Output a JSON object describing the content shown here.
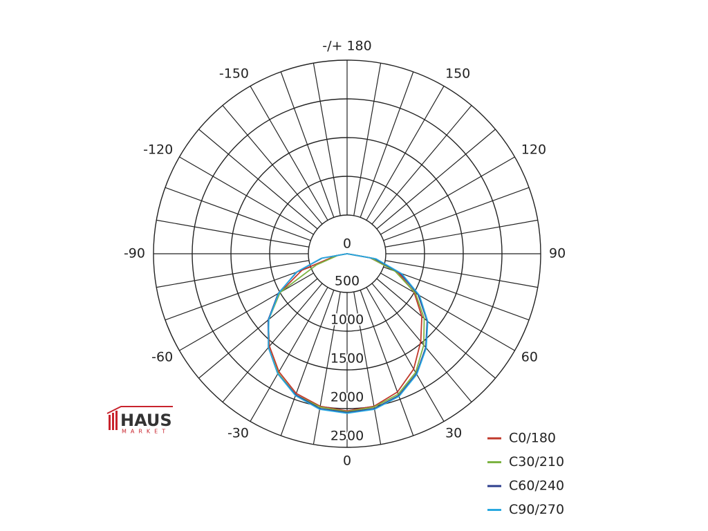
{
  "logo": {
    "name": "HAUS",
    "subtitle": "MARKET"
  },
  "chart_data": {
    "type": "polar",
    "x": [
      -90,
      -80,
      -70,
      -60,
      -50,
      -40,
      -30,
      -20,
      -10,
      0,
      10,
      20,
      30,
      40,
      50,
      60,
      70,
      80,
      90
    ],
    "series": [
      {
        "name": "C0/180",
        "color": "#c0392b",
        "values": [
          0,
          150,
          620,
          1000,
          1330,
          1560,
          1760,
          1920,
          2000,
          2030,
          2000,
          1900,
          1720,
          1480,
          1260,
          1000,
          700,
          300,
          0
        ]
      },
      {
        "name": "C30/210",
        "color": "#7cb342",
        "values": [
          0,
          120,
          420,
          1000,
          1320,
          1580,
          1780,
          1940,
          2010,
          2040,
          2010,
          1930,
          1770,
          1540,
          1300,
          1020,
          660,
          310,
          0
        ]
      },
      {
        "name": "C60/240",
        "color": "#2c3e8c",
        "values": [
          0,
          330,
          690,
          1030,
          1330,
          1580,
          1790,
          1940,
          2030,
          2050,
          2030,
          1950,
          1790,
          1580,
          1350,
          1060,
          730,
          360,
          0
        ]
      },
      {
        "name": "C90/270",
        "color": "#29a8e0",
        "values": [
          0,
          340,
          700,
          1020,
          1320,
          1580,
          1790,
          1950,
          2040,
          2060,
          2040,
          1960,
          1800,
          1590,
          1360,
          1080,
          750,
          380,
          0
        ]
      }
    ],
    "rlim": [
      0,
      2500
    ],
    "rticks": [
      0,
      500,
      1000,
      1500,
      2000,
      2500
    ],
    "angle_grid_step": 10,
    "angle_ticks": [
      0,
      30,
      60,
      90,
      120,
      150,
      {
        "value": 180,
        "label": "-/+ 180"
      },
      -150,
      -120,
      -90,
      -60,
      -30
    ],
    "legend": "lower right"
  }
}
